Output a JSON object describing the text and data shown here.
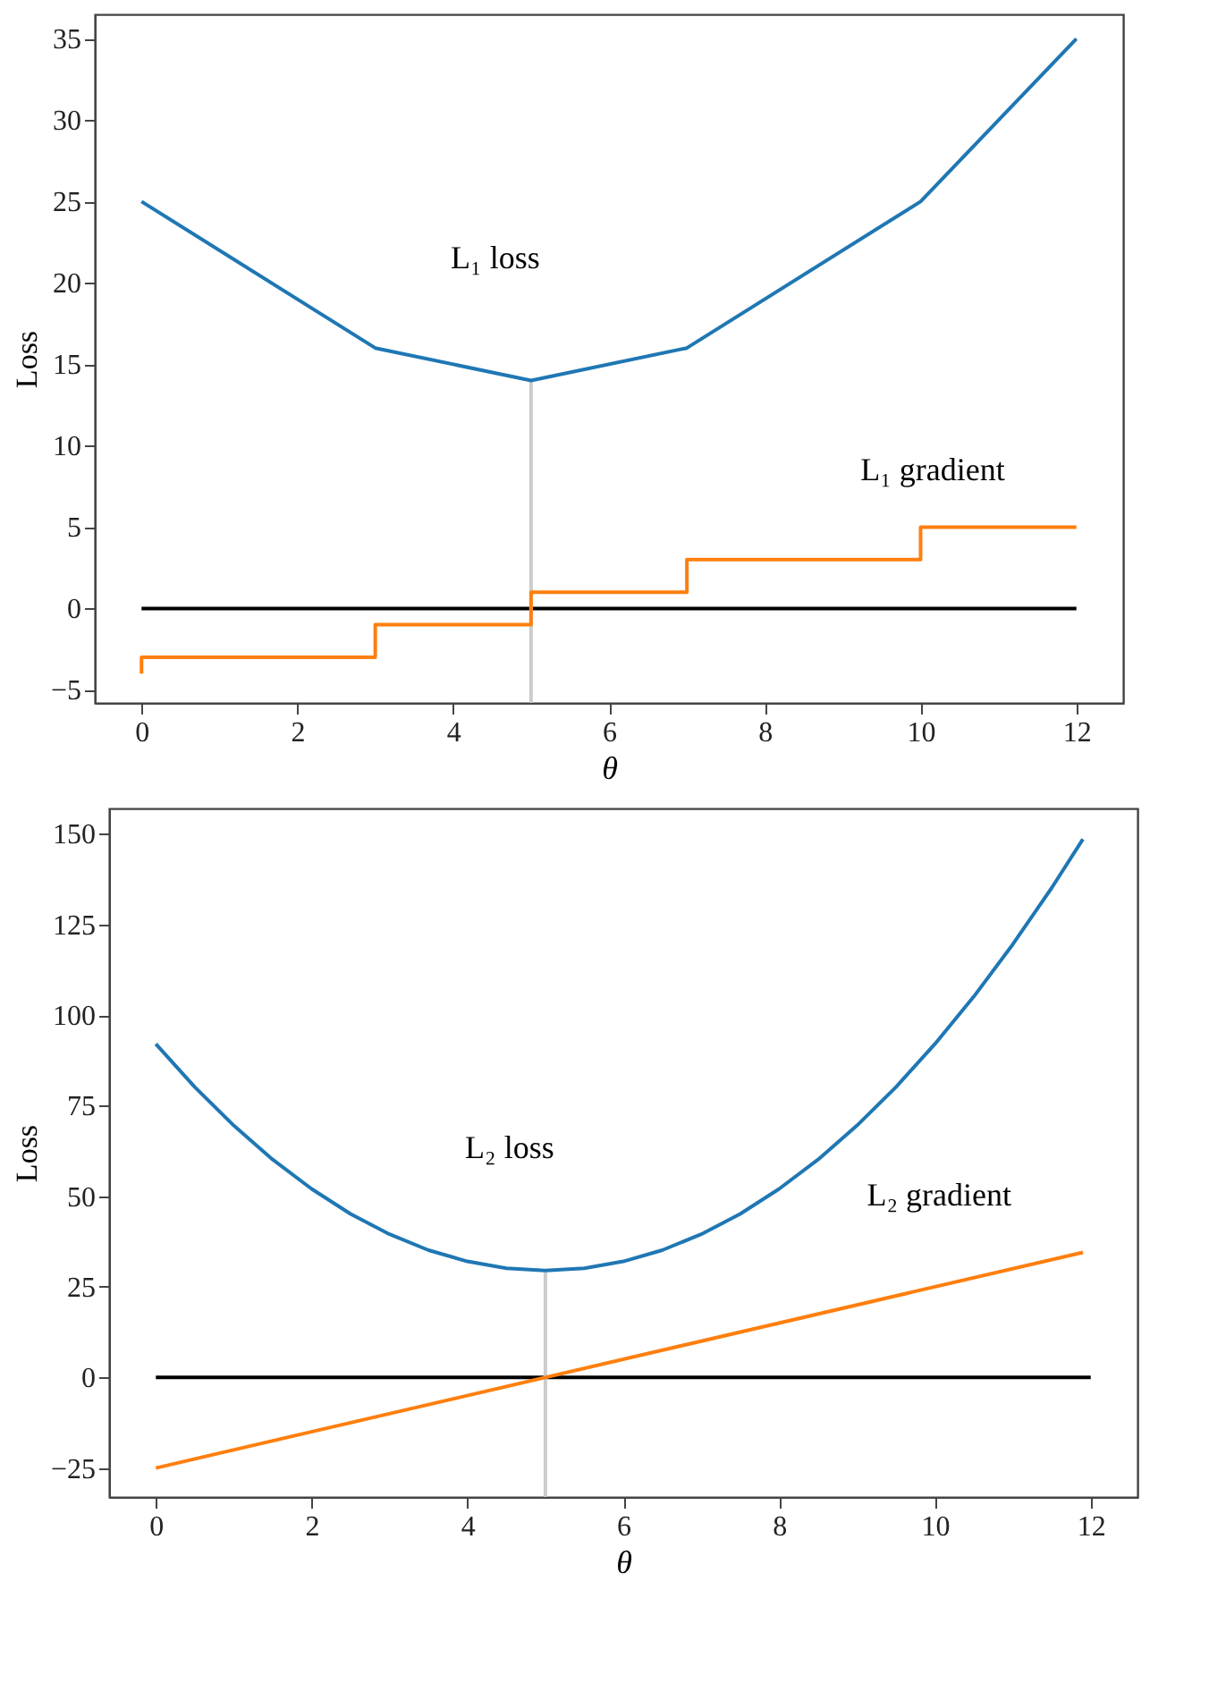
{
  "chart_data": [
    {
      "type": "line",
      "xlabel": "θ",
      "ylabel": "Loss",
      "xlim": [
        -0.6,
        12.6
      ],
      "ylim": [
        -5.8,
        36.5
      ],
      "xticks": [
        0,
        2,
        4,
        6,
        8,
        10,
        12
      ],
      "yticks": [
        -5,
        0,
        5,
        10,
        15,
        20,
        25,
        30,
        35
      ],
      "grid": false,
      "series": [
        {
          "color": "#000000",
          "x": [
            0,
            12
          ],
          "values": [
            0,
            0
          ]
        },
        {
          "color": "#cccccc",
          "x": [
            5,
            5
          ],
          "values": [
            -5.8,
            14
          ]
        },
        {
          "name": "L₁ loss",
          "color": "#1f77b4",
          "x": [
            0,
            3,
            5,
            7,
            10,
            12
          ],
          "values": [
            25,
            16,
            14,
            16,
            25,
            35
          ]
        },
        {
          "name": "L₁ gradient",
          "type": "step",
          "color": "#ff7f0e",
          "x": [
            0,
            0,
            3,
            5,
            7,
            10,
            12
          ],
          "values": [
            -4,
            -3,
            -1,
            1,
            3,
            5,
            5
          ]
        }
      ]
    },
    {
      "type": "line",
      "xlabel": "θ",
      "ylabel": "Loss",
      "xlim": [
        -0.6,
        12.6
      ],
      "ylim": [
        -33,
        157
      ],
      "xticks": [
        0,
        2,
        4,
        6,
        8,
        10,
        12
      ],
      "yticks": [
        -25,
        0,
        25,
        50,
        75,
        100,
        125,
        150
      ],
      "grid": false,
      "series": [
        {
          "color": "#000000",
          "x": [
            0,
            12
          ],
          "values": [
            0,
            0
          ]
        },
        {
          "color": "#cccccc",
          "x": [
            5,
            5
          ],
          "values": [
            -33,
            29.5
          ]
        },
        {
          "name": "L₂ loss",
          "color": "#1f77b4",
          "x": [
            0,
            0.5,
            1,
            1.5,
            2,
            2.5,
            3,
            3.5,
            4,
            4.5,
            5,
            5.5,
            6,
            6.5,
            7,
            7.5,
            8,
            8.5,
            9,
            9.5,
            10,
            10.5,
            11,
            11.5,
            11.9
          ],
          "values": [
            92,
            80.1,
            69.5,
            60.1,
            52,
            45.1,
            39.5,
            35.1,
            32,
            30.1,
            29.5,
            30.1,
            32,
            35.1,
            39.5,
            45.1,
            52,
            60.1,
            69.5,
            80.1,
            92,
            105.1,
            119.5,
            135.1,
            148.5
          ]
        },
        {
          "name": "L₂ gradient",
          "color": "#ff7f0e",
          "x": [
            0,
            11.9
          ],
          "values": [
            -25,
            34.5
          ]
        }
      ]
    }
  ]
}
